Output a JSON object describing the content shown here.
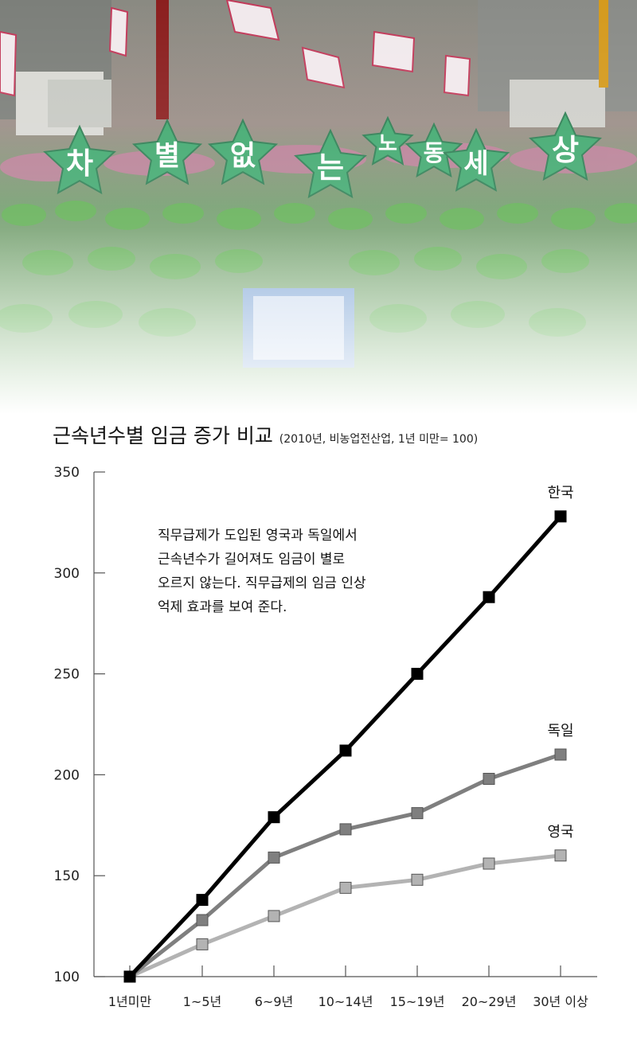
{
  "title": "근속년수별 임금 증가 비교",
  "subtitle": "(2010년, 비농업전산업, 1년 미만= 100)",
  "photo": {
    "banner_chars": [
      "차",
      "별",
      "없",
      "는",
      "노",
      "동",
      "세",
      "상"
    ]
  },
  "note_lines": [
    "직무급제가 도입된 영국과 독일에서",
    "근속년수가 길어져도 임금이 별로",
    "오르지 않는다. 직무급제의 임금 인상",
    "억제 효과를 보여 준다."
  ],
  "chart_data": {
    "type": "line",
    "title": "근속년수별 임금 증가 비교",
    "subtitle": "(2010년, 비농업전산업, 1년 미만= 100)",
    "categories": [
      "1년미만",
      "1~5년",
      "6~9년",
      "10~14년",
      "15~19년",
      "20~29년",
      "30년 이상"
    ],
    "ylim": [
      100,
      350
    ],
    "yticks": [
      100,
      150,
      200,
      250,
      300,
      350
    ],
    "series": [
      {
        "name": "한국",
        "color": "#000000",
        "values": [
          100,
          138,
          179,
          212,
          250,
          288,
          328
        ]
      },
      {
        "name": "독일",
        "color": "#7f7f7f",
        "values": [
          100,
          128,
          159,
          173,
          181,
          198,
          210
        ]
      },
      {
        "name": "영국",
        "color": "#b3b3b3",
        "values": [
          100,
          116,
          130,
          144,
          148,
          156,
          160
        ]
      }
    ]
  }
}
